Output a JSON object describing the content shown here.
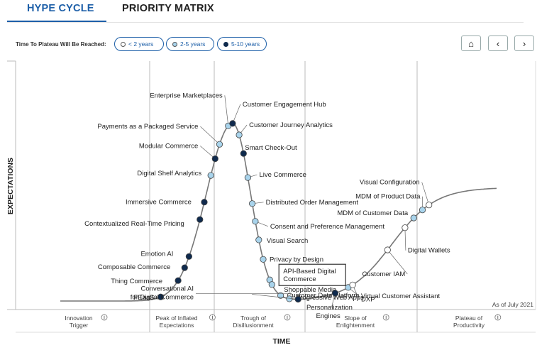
{
  "tabs": [
    "HYPE CYCLE",
    "PRIORITY MATRIX"
  ],
  "legend": {
    "title": "Time To Plateau Will Be Reached:",
    "items": [
      {
        "label": "< 2 years",
        "color": "#ffffff"
      },
      {
        "label": "2-5 years",
        "color": "#a9d4ec"
      },
      {
        "label": "5-10 years",
        "color": "#0f2a4d"
      }
    ]
  },
  "nav": {
    "home": "⌂",
    "prev": "‹",
    "next": "›"
  },
  "chart_data": {
    "type": "hype_cycle",
    "xlabel": "TIME",
    "ylabel": "EXPECTATIONS",
    "as_of": "As of July 2021",
    "phases": [
      {
        "name": [
          "Innovation",
          "Trigger"
        ],
        "info": "i"
      },
      {
        "name": [
          "Peak of Inflated",
          "Expectations"
        ],
        "info": "i"
      },
      {
        "name": [
          "Trough of",
          "Disillusionment"
        ],
        "info": "i"
      },
      {
        "name": [
          "Slope of",
          "Enlightenment"
        ],
        "info": "i"
      },
      {
        "name": [
          "Plateau of",
          "Productivity"
        ],
        "info": "i"
      }
    ],
    "highlighted": [
      "API-Based Digital",
      "Commerce"
    ],
    "points": [
      {
        "label": "FEaaS",
        "t": 0.23,
        "plateau": "5-10"
      },
      {
        "label": "Thing Commerce",
        "t": 0.27,
        "plateau": "5-10"
      },
      {
        "label": "Composable Commerce",
        "t": 0.285,
        "plateau": "5-10"
      },
      {
        "label": "Emotion AI",
        "t": 0.295,
        "plateau": "5-10"
      },
      {
        "label": "Contextualized Real-Time Pricing",
        "t": 0.32,
        "plateau": "5-10"
      },
      {
        "label": "Immersive Commerce",
        "t": 0.33,
        "plateau": "5-10"
      },
      {
        "label": "Digital Shelf Analytics",
        "t": 0.345,
        "plateau": "2-5"
      },
      {
        "label": "Modular Commerce",
        "t": 0.355,
        "plateau": "5-10"
      },
      {
        "label": "Payments as a Packaged Service",
        "t": 0.365,
        "plateau": "2-5"
      },
      {
        "label": "Enterprise Marketplaces",
        "t": 0.385,
        "plateau": "2-5"
      },
      {
        "label": "Customer Engagement Hub",
        "t": 0.395,
        "plateau": "5-10"
      },
      {
        "label": "Customer Journey Analytics",
        "t": 0.41,
        "plateau": "2-5"
      },
      {
        "label": "Smart Check-Out",
        "t": 0.42,
        "plateau": "5-10"
      },
      {
        "label": "Live Commerce",
        "t": 0.43,
        "plateau": "2-5"
      },
      {
        "label": "Distributed Order Management",
        "t": 0.44,
        "plateau": "2-5"
      },
      {
        "label": "Consent and Preference Management",
        "t": 0.447,
        "plateau": "2-5"
      },
      {
        "label": "Visual Search",
        "t": 0.455,
        "plateau": "2-5"
      },
      {
        "label": "Privacy by Design",
        "t": 0.465,
        "plateau": "2-5"
      },
      {
        "label": "API-Based Digital Commerce",
        "t": 0.48,
        "plateau": "2-5"
      },
      {
        "label": "Shoppable Media",
        "t": 0.485,
        "plateau": "2-5"
      },
      {
        "label": "Customer Data Platform",
        "t": 0.505,
        "plateau": "2-5"
      },
      {
        "label": "Progressive Web Apps",
        "t": 0.525,
        "plateau": "2-5"
      },
      {
        "label": "Conversational AI for Digital Commerce",
        "t": 0.545,
        "plateau": "5-10"
      },
      {
        "label": "Personalization Engines",
        "t": 0.63,
        "plateau": "5-10"
      },
      {
        "label": "Virtual Customer Assistant",
        "t": 0.66,
        "plateau": "2-5"
      },
      {
        "label": "DXP",
        "t": 0.67,
        "plateau": "<2"
      },
      {
        "label": "Customer IAM",
        "t": 0.75,
        "plateau": "<2"
      },
      {
        "label": "Digital Wallets",
        "t": 0.79,
        "plateau": "<2"
      },
      {
        "label": "MDM of Customer Data",
        "t": 0.81,
        "plateau": "2-5"
      },
      {
        "label": "MDM of Product Data",
        "t": 0.83,
        "plateau": "2-5"
      },
      {
        "label": "Visual Configuration",
        "t": 0.845,
        "plateau": "<2"
      }
    ]
  }
}
